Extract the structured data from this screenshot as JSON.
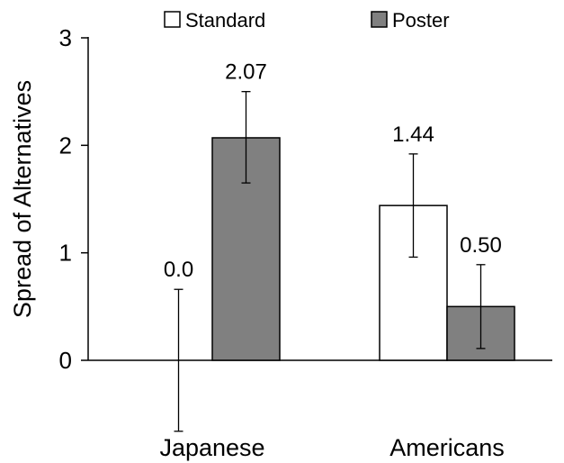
{
  "chart_data": {
    "type": "bar",
    "title": "",
    "xlabel": "",
    "ylabel": "Spread of Alternatives",
    "categories": [
      "Japanese",
      "Americans"
    ],
    "ylim": [
      0,
      3
    ],
    "yticks": [
      0,
      1,
      2,
      3
    ],
    "grid": false,
    "legend_position": "top",
    "series": [
      {
        "name": "Standard",
        "color": "#ffffff",
        "values": [
          0.0,
          1.44
        ],
        "value_labels": [
          "0.0",
          "1.44"
        ],
        "error_low": [
          -0.66,
          0.96
        ],
        "error_high": [
          0.66,
          1.92
        ]
      },
      {
        "name": "Poster",
        "color": "#808080",
        "values": [
          2.07,
          0.5
        ],
        "value_labels": [
          "2.07",
          "0.50"
        ],
        "error_low": [
          1.65,
          0.11
        ],
        "error_high": [
          2.5,
          0.89
        ]
      }
    ]
  }
}
